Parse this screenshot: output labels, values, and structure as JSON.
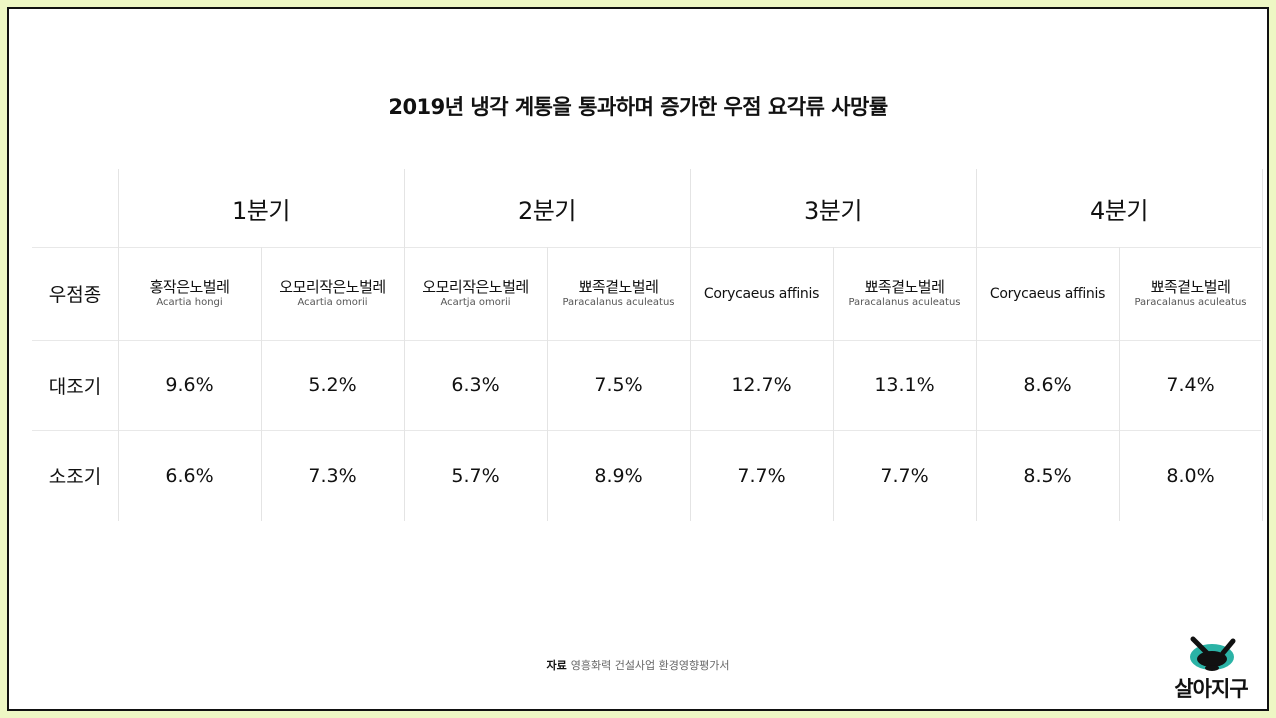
{
  "title": "2019년 냉각 계통을 통과하며 증가한 우점 요각류 사망률",
  "header_row_label": "우점종",
  "quarters": [
    "1분기",
    "2분기",
    "3분기",
    "4분기"
  ],
  "species": [
    {
      "ko": "홍작은노벌레",
      "sci": "Acartia hongi"
    },
    {
      "ko": "오모리작은노벌레",
      "sci": "Acartia omorii"
    },
    {
      "ko": "오모리작은노벌레",
      "sci": "Acartja omorii"
    },
    {
      "ko": "뾰족곁노벌레",
      "sci": "Paracalanus aculeatus"
    },
    {
      "en": "Corycaeus affinis"
    },
    {
      "ko": "뾰족곁노벌레",
      "sci": "Paracalanus aculeatus"
    },
    {
      "en": "Corycaeus affinis"
    },
    {
      "ko": "뾰족곁노벌레",
      "sci": "Paracalanus aculeatus"
    }
  ],
  "rows": [
    {
      "label": "대조기",
      "values": [
        "9.6%",
        "5.2%",
        "6.3%",
        "7.5%",
        "12.7%",
        "13.1%",
        "8.6%",
        "7.4%"
      ]
    },
    {
      "label": "소조기",
      "values": [
        "6.6%",
        "7.3%",
        "5.7%",
        "8.9%",
        "7.7%",
        "7.7%",
        "8.5%",
        "8.0%"
      ]
    }
  ],
  "chart_data": {
    "type": "table",
    "title": "2019년 냉각 계통을 통과하며 증가한 우점 요각류 사망률",
    "column_groups": [
      "1분기",
      "2분기",
      "3분기",
      "4분기"
    ],
    "row_header": "우점종",
    "columns": [
      "홍작은노벌레 Acartia hongi",
      "오모리작은노벌레 Acartia omorii",
      "오모리작은노벌레 Acartja omorii",
      "뾰족곁노벌레 Paracalanus aculeatus",
      "Corycaeus affinis",
      "뾰족곁노벌레 Paracalanus aculeatus",
      "Corycaeus affinis",
      "뾰족곁노벌레 Paracalanus aculeatus"
    ],
    "series": [
      {
        "name": "대조기",
        "values": [
          9.6,
          5.2,
          6.3,
          7.5,
          12.7,
          13.1,
          8.6,
          7.4
        ]
      },
      {
        "name": "소조기",
        "values": [
          6.6,
          7.3,
          5.7,
          8.9,
          7.7,
          7.7,
          8.5,
          8.0
        ]
      }
    ],
    "unit": "%"
  },
  "source": {
    "label": "자료",
    "text": "영흥화력 건설사업 환경영향평가서"
  },
  "logo": {
    "text": "살아지구",
    "icon": "turtle-logo-icon"
  },
  "colors": {
    "background": "#eef7c4",
    "frame_border": "#111111",
    "logo_teal": "#2bb3a6"
  }
}
